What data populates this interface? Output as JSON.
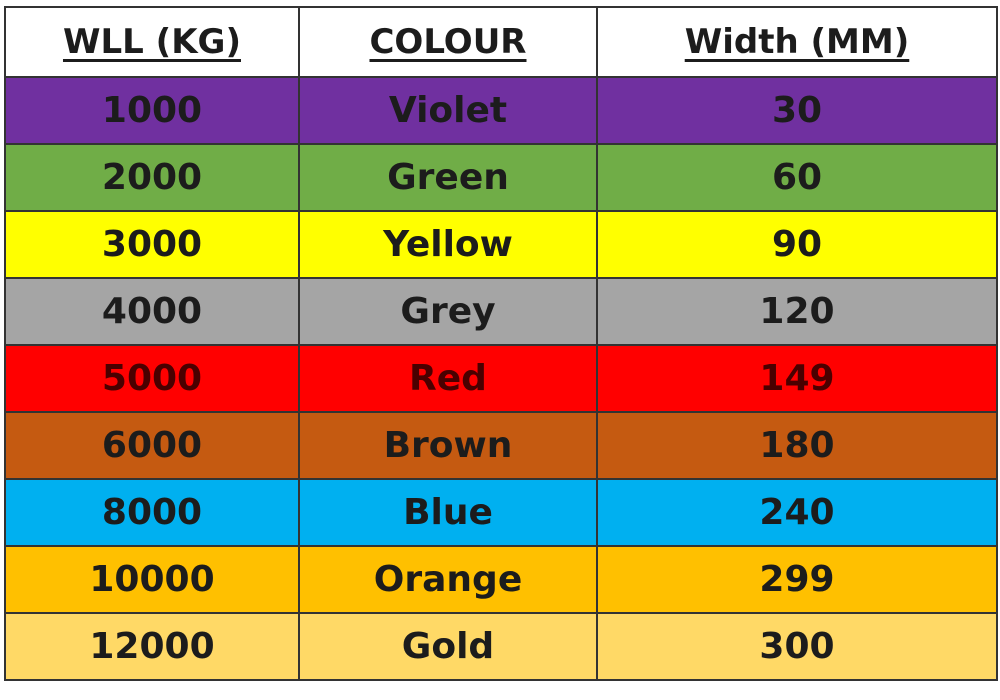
{
  "table": {
    "header": [
      "WLL (KG)",
      "COLOUR",
      "Width (MM)"
    ],
    "rows": [
      [
        "1000",
        "Violet",
        "30"
      ],
      [
        "2000",
        "Green",
        "60"
      ],
      [
        "3000",
        "Yellow",
        "90"
      ],
      [
        "4000",
        "Grey",
        "120"
      ],
      [
        "5000",
        "Red",
        "149"
      ],
      [
        "6000",
        "Brown",
        "180"
      ],
      [
        "8000",
        "Blue",
        "240"
      ],
      [
        "10000",
        "Orange",
        "299"
      ],
      [
        "12000",
        "Gold",
        "300"
      ]
    ]
  }
}
